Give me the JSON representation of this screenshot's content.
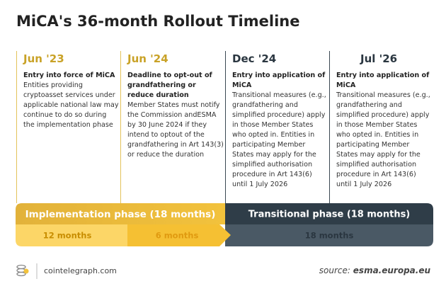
{
  "title": "MiCA's 36-month Rollout Timeline",
  "columns": [
    {
      "date": "Jun '23",
      "heading": "Entry into force of MiCA",
      "body": "Entities providing cryptoasset services under applicable national law may continue to do so during the implementation phase"
    },
    {
      "date": "Jun '24",
      "heading": "Deadline to opt-out of grandfathering or reduce duration",
      "body": "Member States must notify the Commission andESMA by 30 June 2024 if they intend to optout of the grandfathering in Art 143(3) or reduce the duration"
    },
    {
      "date": "Dec '24",
      "heading": "Entry into application of MiCA",
      "body": "Transitional measures (e.g., grandfathering and simplified procedure) apply in those Member States who opted in. Entities in participating Member States may apply for the simplified authorisation procedure in Art 143(6) until 1 July 2026"
    },
    {
      "date": "Jul '26",
      "heading": "Entry into application of MiCA",
      "body": "Transitional measures (e.g., grandfathering and simplified procedure) apply in those Member States who opted in. Entities in participating Member States may apply for the simplified authorisation procedure in Art 143(6) until 1 July 2026"
    }
  ],
  "phases": [
    "Implementation phase (18 months)",
    "Transitional phase (18 months)"
  ],
  "durations": [
    "12 months",
    "6 months",
    "18 months"
  ],
  "footer": {
    "site": "cointelegraph.com",
    "source_prefix": "source:",
    "source": "esma.europa.eu"
  }
}
